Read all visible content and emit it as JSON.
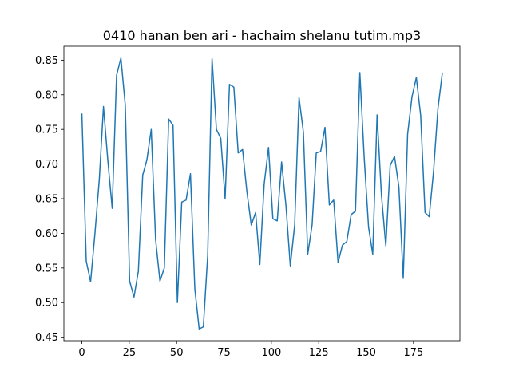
{
  "chart_data": {
    "type": "line",
    "title": "0410 hanan ben ari - hachaim shelanu tutim.mp3",
    "xlabel": "",
    "ylabel": "",
    "xlim": [
      -9.5,
      199.5
    ],
    "ylim": [
      0.445,
      0.87
    ],
    "xticks": [
      0,
      25,
      50,
      75,
      100,
      125,
      150,
      175
    ],
    "yticks": [
      0.45,
      0.5,
      0.55,
      0.6,
      0.65,
      0.7,
      0.75,
      0.8,
      0.85
    ],
    "ytick_labels": [
      "0.45",
      "0.50",
      "0.55",
      "0.60",
      "0.65",
      "0.70",
      "0.75",
      "0.80",
      "0.85"
    ],
    "grid": false,
    "color": "#1f77b4",
    "series": [
      {
        "x": [
          0,
          2.3,
          4.6,
          6.9,
          9.2,
          11.4,
          13.7,
          16.0,
          18.3,
          20.6,
          22.9,
          25.2,
          27.5,
          29.8,
          32.1,
          34.3,
          36.6,
          38.9,
          41.2,
          43.5,
          45.8,
          48.1,
          50.4,
          52.7,
          55.0,
          57.3,
          59.6,
          61.9,
          64.1,
          66.4,
          68.7,
          71.0,
          73.3,
          75.6,
          77.9,
          80.2,
          82.5,
          84.8,
          87.1,
          89.4,
          91.7,
          93.9,
          96.2,
          98.5,
          100.8,
          103.1,
          105.4,
          107.7,
          110.0,
          112.3,
          114.6,
          116.9,
          119.2,
          121.5,
          123.7,
          126.0,
          128.3,
          130.6,
          132.9,
          135.2,
          137.5,
          139.8,
          142.1,
          144.4,
          146.7,
          149.0,
          151.3,
          153.5,
          155.8,
          158.1,
          160.4,
          162.7,
          165.0,
          167.3,
          169.6,
          171.9,
          174.2,
          176.5,
          178.8,
          181.1,
          183.3,
          185.6,
          187.9,
          190.2
        ],
        "y": [
          0.773,
          0.56,
          0.53,
          0.6,
          0.678,
          0.783,
          0.705,
          0.636,
          0.828,
          0.853,
          0.785,
          0.531,
          0.508,
          0.545,
          0.684,
          0.706,
          0.75,
          0.591,
          0.531,
          0.55,
          0.765,
          0.756,
          0.5,
          0.645,
          0.648,
          0.686,
          0.52,
          0.462,
          0.465,
          0.568,
          0.852,
          0.75,
          0.737,
          0.65,
          0.815,
          0.811,
          0.716,
          0.721,
          0.66,
          0.612,
          0.63,
          0.555,
          0.671,
          0.724,
          0.621,
          0.618,
          0.703,
          0.64,
          0.553,
          0.612,
          0.796,
          0.746,
          0.57,
          0.612,
          0.716,
          0.718,
          0.753,
          0.641,
          0.648,
          0.558,
          0.583,
          0.588,
          0.627,
          0.632,
          0.832,
          0.709,
          0.609,
          0.57,
          0.771,
          0.655,
          0.582,
          0.698,
          0.711,
          0.667,
          0.535,
          0.743,
          0.797,
          0.825,
          0.77,
          0.63,
          0.624,
          0.69,
          0.78,
          0.831
        ]
      }
    ]
  }
}
